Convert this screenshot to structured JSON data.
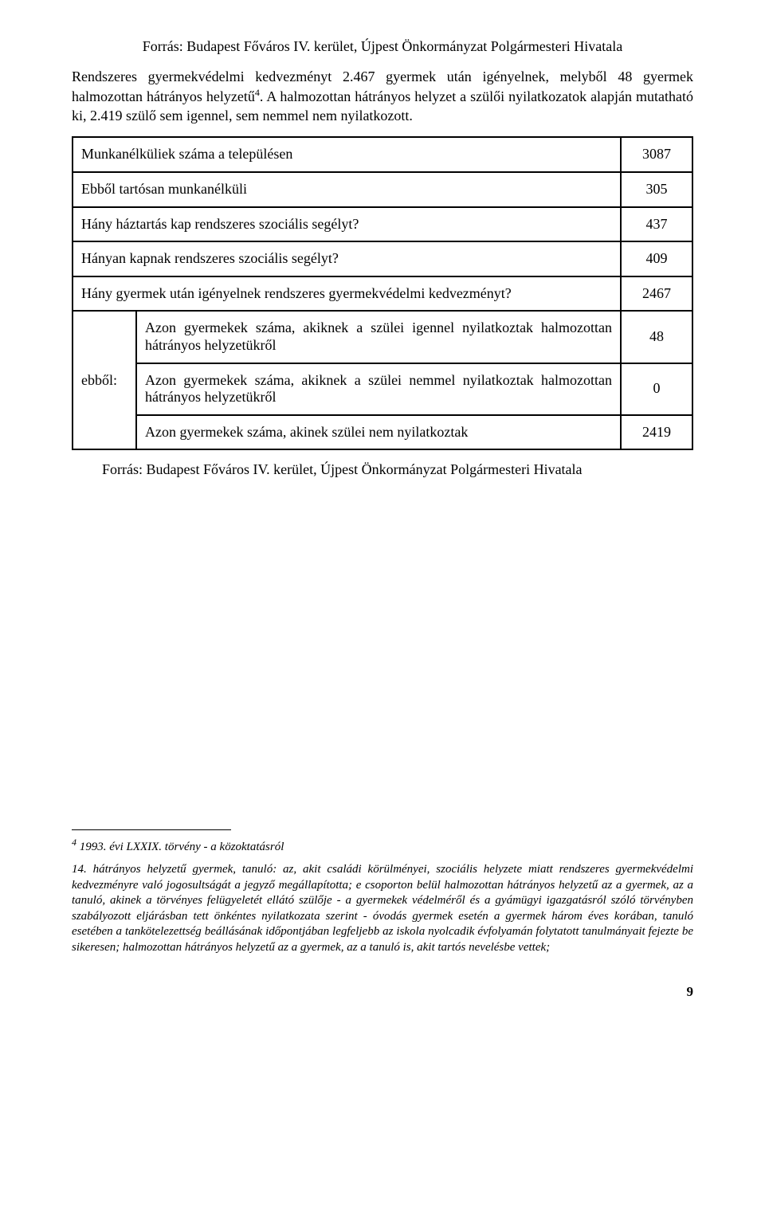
{
  "source_top": "Forrás: Budapest Főváros IV. kerület, Újpest Önkormányzat Polgármesteri Hivatala",
  "paragraph": "Rendszeres gyermekvédelmi kedvezményt 2.467 gyermek után igényelnek, melyből 48 gyermek halmozottan hátrányos helyzetű",
  "paragraph_sup": "4",
  "paragraph_tail": ". A halmozottan hátrányos helyzet a szülői nyilatkozatok alapján mutatható ki, 2.419 szülő sem igennel, sem nemmel nem nyilatkozott.",
  "table": {
    "rows": [
      {
        "label": "Munkanélküliek száma a településen",
        "value": "3087"
      },
      {
        "label": "Ebből tartósan munkanélküli",
        "value": "305"
      },
      {
        "label": "Hány háztartás kap rendszeres szociális segélyt?",
        "value": "437"
      },
      {
        "label": "Hányan kapnak rendszeres szociális segélyt?",
        "value": "409"
      },
      {
        "label": "Hány gyermek után igényelnek rendszeres gyermekvédelmi kedvezményt?",
        "value": "2467"
      }
    ],
    "side_label": "ebből:",
    "subrows": [
      {
        "label": "Azon gyermekek száma, akiknek a szülei igennel nyilatkoztak halmozottan hátrányos helyzetükről",
        "value": "48"
      },
      {
        "label": "Azon gyermekek száma, akiknek a szülei nemmel nyilatkoztak halmozottan hátrányos helyzetükről",
        "value": "0"
      },
      {
        "label": "Azon gyermekek száma, akinek szülei nem nyilatkoztak",
        "value": "2419"
      }
    ]
  },
  "source_bottom": "Forrás: Budapest Főváros IV. kerület, Újpest Önkormányzat Polgármesteri Hivatala",
  "footnote": {
    "marker": "4",
    "title": " 1993. évi LXXIX. törvény - a közoktatásról",
    "body": "14. hátrányos helyzetű gyermek, tanuló: az, akit családi körülményei, szociális helyzete miatt rendszeres gyermekvédelmi kedvezményre való jogosultságát a jegyző megállapította; e csoporton belül halmozottan hátrányos helyzetű az a gyermek, az a tanuló, akinek a törvényes felügyeletét ellátó szülője - a gyermekek védelméről és a gyámügyi igazgatásról szóló törvényben szabályozott eljárásban tett önkéntes nyilatkozata szerint - óvodás gyermek esetén a gyermek három éves korában, tanuló esetében a tankötelezettség beállásának időpontjában legfeljebb az iskola nyolcadik évfolyamán folytatott tanulmányait fejezte be sikeresen; halmozottan hátrányos helyzetű az a gyermek, az a tanuló is, akit tartós nevelésbe vettek;"
  },
  "page_number": "9"
}
